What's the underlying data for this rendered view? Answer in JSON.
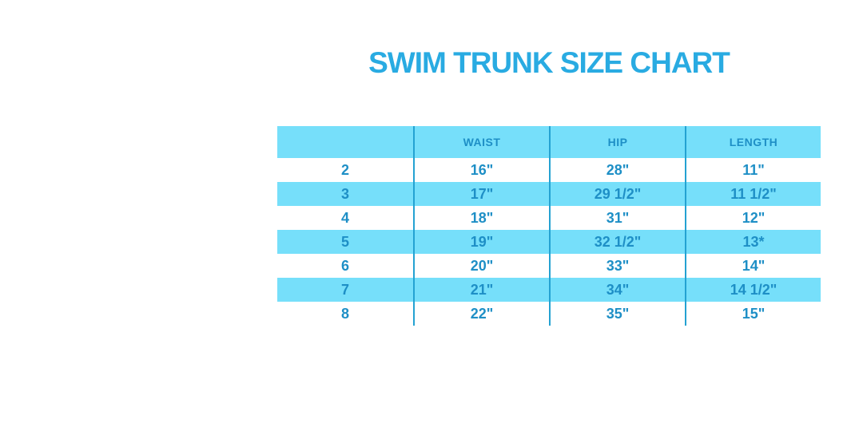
{
  "title": "SWIM TRUNK SIZE CHART",
  "colors": {
    "title": "#29ABE2",
    "table_text": "#1E8FC6",
    "row_highlight": "#76DFFA",
    "divider": "#24A2D2",
    "background": "#FFFFFF"
  },
  "chart_data": {
    "type": "table",
    "title": "SWIM TRUNK SIZE CHART",
    "columns": [
      "",
      "WAIST",
      "HIP",
      "LENGTH"
    ],
    "rows": [
      {
        "size": "2",
        "waist": "16\"",
        "hip": "28\"",
        "length": "11\""
      },
      {
        "size": "3",
        "waist": "17\"",
        "hip": "29 1/2\"",
        "length": "11 1/2\""
      },
      {
        "size": "4",
        "waist": "18\"",
        "hip": "31\"",
        "length": "12\""
      },
      {
        "size": "5",
        "waist": "19\"",
        "hip": "32 1/2\"",
        "length": "13*"
      },
      {
        "size": "6",
        "waist": "20\"",
        "hip": "33\"",
        "length": "14\""
      },
      {
        "size": "7",
        "waist": "21\"",
        "hip": "34\"",
        "length": "14 1/2\""
      },
      {
        "size": "8",
        "waist": "22\"",
        "hip": "35\"",
        "length": "15\""
      }
    ],
    "layout": {
      "alternating_rows": "white / light-cyan starting white",
      "header_background": "light-cyan",
      "grid": "vertical dividers only"
    }
  }
}
